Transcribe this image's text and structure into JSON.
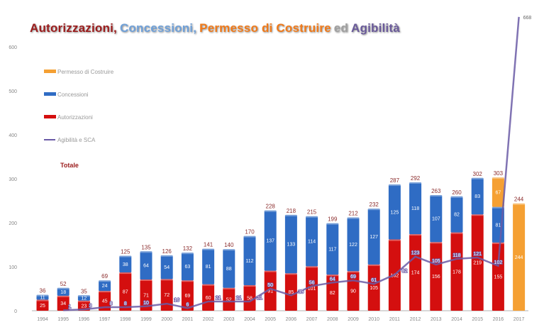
{
  "title_parts": [
    {
      "text": "Autorizzazioni,",
      "color": "#9b1c1c"
    },
    {
      "text": "Concessioni,",
      "color": "#6fa0d8"
    },
    {
      "text": "Permesso di Costruire",
      "color": "#f07a1a"
    },
    {
      "text": "ed",
      "color": "#a0a0a0"
    },
    {
      "text": "Agibilità",
      "color": "#6a5a9a"
    }
  ],
  "chart_data": {
    "type": "bar",
    "stacked": true,
    "title": "Autorizzazioni, Concessioni, Permesso di Costruire ed Agibilità",
    "categories": [
      "1994",
      "1995",
      "1996",
      "1997",
      "1998",
      "1999",
      "2000",
      "2001",
      "2002",
      "2003",
      "2004",
      "2005",
      "2006",
      "2007",
      "2008",
      "2009",
      "2010",
      "2011",
      "2012",
      "2013",
      "2014",
      "2015",
      "2016",
      "2017"
    ],
    "series": [
      {
        "name": "Autorizzazioni",
        "color": "#d40f0f",
        "values": [
          25,
          34,
          23,
          45,
          87,
          71,
          72,
          69,
          60,
          52,
          58,
          91,
          85,
          101,
          82,
          90,
          105,
          162,
          174,
          156,
          178,
          219,
          155,
          0
        ]
      },
      {
        "name": "Concessioni",
        "color": "#2f6cc4",
        "values": [
          11,
          18,
          12,
          24,
          38,
          64,
          54,
          63,
          81,
          88,
          112,
          137,
          133,
          114,
          117,
          122,
          127,
          125,
          118,
          107,
          82,
          83,
          81,
          0
        ]
      },
      {
        "name": "Permesso di Costruire",
        "color": "#f5a033",
        "values": [
          0,
          0,
          0,
          0,
          0,
          0,
          0,
          0,
          0,
          0,
          0,
          0,
          0,
          0,
          0,
          0,
          0,
          0,
          0,
          0,
          0,
          0,
          67,
          244
        ]
      }
    ],
    "line_series": {
      "name": "Agibilità e SCA",
      "color": "#6a5aa6",
      "values": [
        null,
        1,
        3,
        8,
        8,
        10,
        16,
        6,
        21,
        21,
        21,
        50,
        35,
        56,
        64,
        69,
        61,
        82,
        123,
        105,
        118,
        121,
        102,
        668
      ]
    },
    "totals": [
      36,
      52,
      35,
      69,
      125,
      135,
      126,
      132,
      141,
      140,
      170,
      228,
      218,
      215,
      199,
      212,
      232,
      287,
      292,
      263,
      260,
      302,
      303,
      244
    ],
    "totals_label": "Totale",
    "totals_label_color": "#9b1c1c",
    "ylim": [
      0,
      600
    ],
    "yticks": [
      0,
      100,
      200,
      300,
      400,
      500,
      600
    ],
    "xlabel": "",
    "ylabel": "",
    "grid": false,
    "legend_position": "top-left",
    "legend_order": [
      "Permesso di Costruire",
      "Concessioni",
      "Autorizzazioni",
      "Agibilità e SCA"
    ]
  }
}
